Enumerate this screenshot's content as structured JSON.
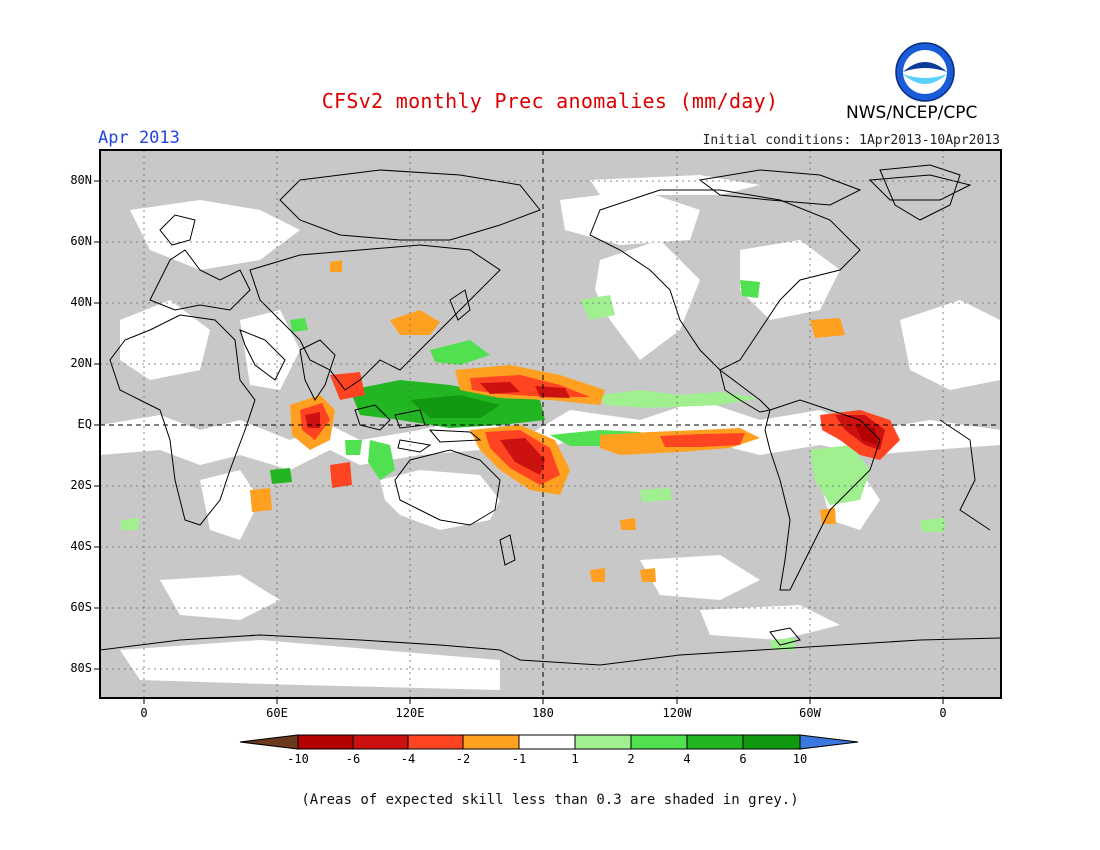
{
  "header": {
    "title": "CFSv2 monthly Prec anomalies (mm/day)",
    "period": "Apr 2013",
    "agency": "NWS/NCEP/CPC",
    "initial_conditions": "Initial conditions: 1Apr2013-10Apr2013",
    "logo_text": "NOAA"
  },
  "map": {
    "lat_labels": [
      "80N",
      "60N",
      "40N",
      "20N",
      "EQ",
      "20S",
      "40S",
      "60S",
      "80S"
    ],
    "lon_labels": [
      "0",
      "60E",
      "120E",
      "180",
      "120W",
      "60W",
      "0"
    ],
    "skill_mask_color": "#c8c8c8",
    "coast_color": "#000000",
    "grid_style": "dotted"
  },
  "colorbar": {
    "labels": [
      "-10",
      "-6",
      "-4",
      "-2",
      "-1",
      "1",
      "2",
      "4",
      "6",
      "10"
    ],
    "colors": [
      "#6b3a1e",
      "#b30000",
      "#cc1111",
      "#ff4422",
      "#ffa020",
      "#ffffff",
      "#a0f090",
      "#50e050",
      "#22b622",
      "#119911",
      "#3a78e0"
    ]
  },
  "footnote": "(Areas of expected skill less than 0.3 are shaded in grey.)"
}
